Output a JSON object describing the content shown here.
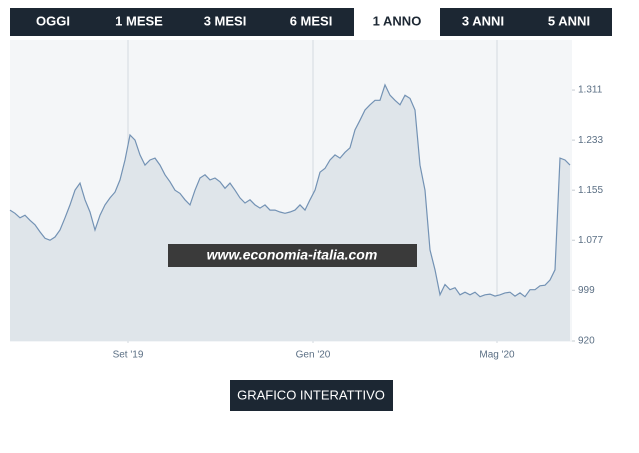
{
  "tabs": [
    {
      "label": "OGGI",
      "active": false
    },
    {
      "label": "1 MESE",
      "active": false
    },
    {
      "label": "3 MESI",
      "active": false
    },
    {
      "label": "6 MESI",
      "active": false
    },
    {
      "label": "1 ANNO",
      "active": true
    },
    {
      "label": "3 ANNI",
      "active": false
    },
    {
      "label": "5 ANNI",
      "active": false
    }
  ],
  "watermark": "www.economia-italia.com",
  "button": "GRAFICO INTERATTIVO",
  "chart_data": {
    "type": "area",
    "color": "#7392b4",
    "fill": "#dfe5ea",
    "grid": true,
    "values": [
      1124,
      1119,
      1112,
      1116,
      1108,
      1101,
      1090,
      1080,
      1077,
      1082,
      1093,
      1112,
      1132,
      1155,
      1166,
      1140,
      1121,
      1093,
      1116,
      1132,
      1143,
      1152,
      1171,
      1202,
      1241,
      1233,
      1210,
      1194,
      1202,
      1205,
      1194,
      1179,
      1168,
      1155,
      1150,
      1140,
      1132,
      1155,
      1174,
      1179,
      1171,
      1174,
      1168,
      1158,
      1166,
      1155,
      1143,
      1135,
      1140,
      1132,
      1127,
      1132,
      1124,
      1124,
      1121,
      1119,
      1121,
      1124,
      1132,
      1124,
      1140,
      1155,
      1183,
      1189,
      1202,
      1210,
      1205,
      1214,
      1221,
      1249,
      1264,
      1280,
      1288,
      1295,
      1295,
      1319,
      1303,
      1295,
      1288,
      1303,
      1298,
      1280,
      1194,
      1155,
      1062,
      1031,
      992,
      1008,
      1000,
      1003,
      992,
      996,
      992,
      996,
      989,
      992,
      993,
      990,
      992,
      995,
      996,
      990,
      995,
      989,
      1000,
      1000,
      1006,
      1007,
      1015,
      1031,
      1205,
      1202,
      1194
    ],
    "xlim": [
      0,
      112
    ],
    "xticks": [
      {
        "value": 23.6,
        "label": "Set '19"
      },
      {
        "value": 60.6,
        "label": "Gen '20"
      },
      {
        "value": 97.4,
        "label": "Mag '20"
      }
    ],
    "ylim": [
      920,
      1389
    ],
    "yticks": [
      920,
      999,
      {
        "value": 1077,
        "label": "1.077"
      },
      {
        "value": 1155,
        "label": "1.155"
      },
      {
        "value": 1233,
        "label": "1.233"
      },
      {
        "value": 1311,
        "label": "1.311"
      }
    ]
  }
}
